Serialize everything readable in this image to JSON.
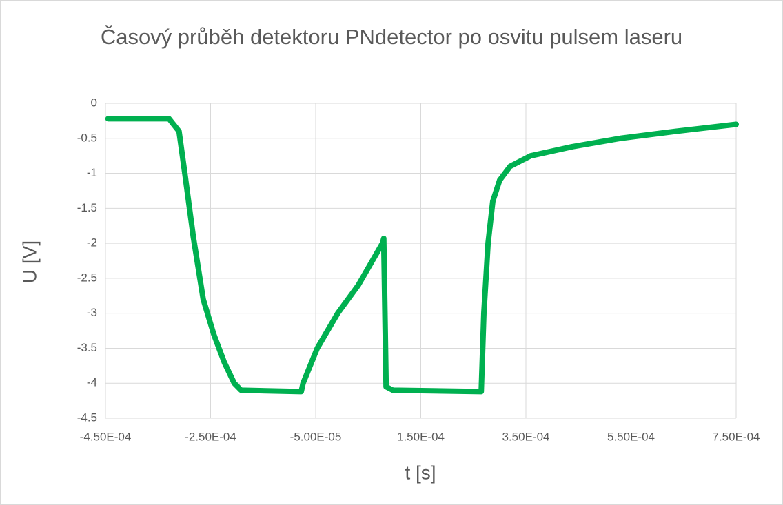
{
  "chart_data": {
    "type": "line",
    "title": "Časový průběh detektoru PNdetector po osvitu pulsem laseru",
    "x_label": "t [s]",
    "y_label": "U [V]",
    "series": [
      {
        "name": "U",
        "color": "#00b050",
        "x": [
          -0.000445,
          -0.000329,
          -0.00031,
          -0.000299,
          -0.000283,
          -0.000264,
          -0.000244,
          -0.000224,
          -0.000205,
          -0.000192,
          -7.75e-05,
          -7.4e-05,
          -4.7e-05,
          -8e-06,
          3.1e-05,
          7.7e-05,
          7.95e-05,
          8.4e-05,
          9.7e-05,
          0.000265,
          0.00027,
          0.000278,
          0.000287,
          0.0003,
          0.00032,
          0.000359,
          0.000438,
          0.00053,
          0.000635,
          0.00075
        ],
        "values": [
          -0.22,
          -0.22,
          -0.4,
          -1.0,
          -1.9,
          -2.8,
          -3.3,
          -3.7,
          -4.0,
          -4.1,
          -4.12,
          -4.0,
          -3.5,
          -3.0,
          -2.6,
          -2.0,
          -1.93,
          -4.05,
          -4.1,
          -4.12,
          -3.0,
          -2.0,
          -1.4,
          -1.1,
          -0.9,
          -0.75,
          -0.62,
          -0.5,
          -0.4,
          -0.3
        ]
      }
    ],
    "xlim": [
      -0.00045,
      0.00075
    ],
    "xticks": [
      {
        "value": -0.00045,
        "label": "-4.50E-04"
      },
      {
        "value": -0.00025,
        "label": "-2.50E-04"
      },
      {
        "value": -5e-05,
        "label": "-5.00E-05"
      },
      {
        "value": 0.00015,
        "label": "1.50E-04"
      },
      {
        "value": 0.00035,
        "label": "3.50E-04"
      },
      {
        "value": 0.00055,
        "label": "5.50E-04"
      },
      {
        "value": 0.00075,
        "label": "7.50E-04"
      }
    ],
    "ylim": [
      -4.5,
      0
    ],
    "yticks": [
      0,
      -0.5,
      -1,
      -1.5,
      -2,
      -2.5,
      -3,
      -3.5,
      -4,
      -4.5
    ],
    "grid": true
  }
}
